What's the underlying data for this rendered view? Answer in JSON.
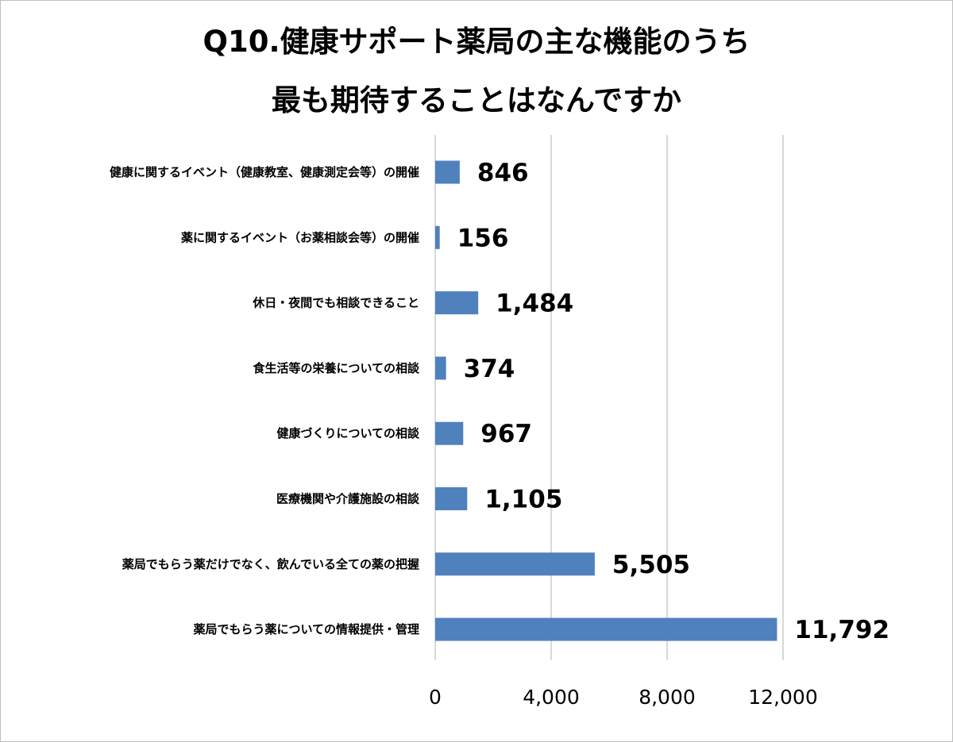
{
  "chart_data": {
    "type": "bar",
    "orientation": "horizontal",
    "title_lines": [
      "Q10.健康サポート薬局の主な機能のうち",
      "最も期待することはなんですか"
    ],
    "xlabel": "",
    "ylabel": "",
    "categories": [
      "健康に関するイベント（健康教室、健康測定会等）の開催",
      "薬に関するイベント（お薬相談会等）の開催",
      "休日・夜間でも相談できること",
      "食生活等の栄養についての相談",
      "健康づくりについての相談",
      "医療機関や介護施設の相談",
      "薬局でもらう薬だけでなく、飲んでいる全ての薬の把握",
      "薬局でもらう薬についての情報提供・管理"
    ],
    "values": [
      846,
      156,
      1484,
      374,
      967,
      1105,
      5505,
      11792
    ],
    "value_labels": [
      "846",
      "156",
      "1,484",
      "374",
      "967",
      "1,105",
      "5,505",
      "11,792"
    ],
    "xlim": [
      0,
      12000
    ],
    "ticks": [
      0,
      4000,
      8000,
      12000
    ],
    "tick_labels": [
      "0",
      "4,000",
      "8,000",
      "12,000"
    ],
    "grid": true,
    "legend": "none",
    "colors": {
      "bar": "#4f81bd",
      "grid": "#d9d9d9",
      "frame": "#bfbfbf"
    }
  }
}
